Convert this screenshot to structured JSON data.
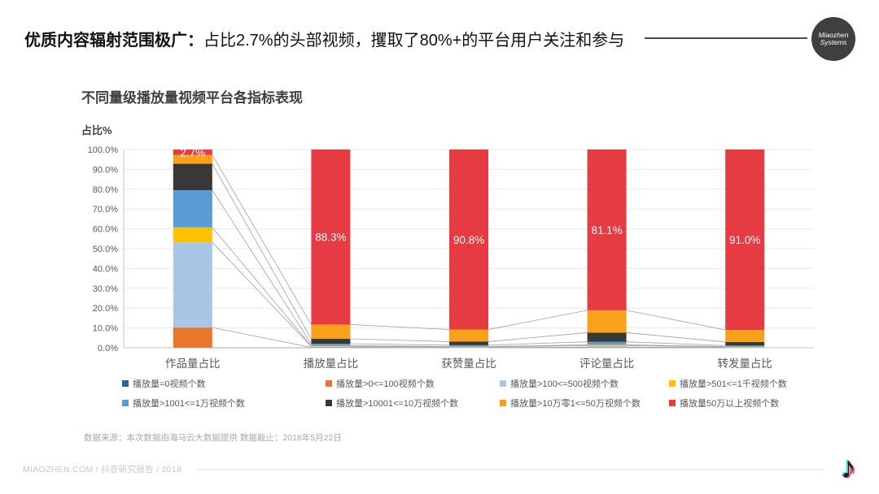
{
  "header": {
    "title_bold": "优质内容辐射范围极广：",
    "title_rest": "占比2.7%的头部视频，攫取了80%+的平台用户关注和参与",
    "logo_line1": "Miaozhen",
    "logo_line2": "Systems"
  },
  "chart": {
    "title": "不同量级播放量视频平台各指标表现",
    "y_axis_label": "占比%"
  },
  "chart_data": {
    "type": "bar",
    "stacked": true,
    "title": "不同量级播放量视频平台各指标表现",
    "ylabel": "占比%",
    "ylim": [
      0,
      100
    ],
    "grid": true,
    "legend_position": "bottom",
    "y_ticks": [
      "100.0%",
      "90.0%",
      "80.0%",
      "70.0%",
      "60.0%",
      "50.0%",
      "40.0%",
      "30.0%",
      "20.0%",
      "10.0%",
      "0.0%"
    ],
    "categories": [
      "作品量占比",
      "播放量占比",
      "获赞量占比",
      "评论量占比",
      "转发量占比"
    ],
    "series": [
      {
        "name": "播放量=0视频个数",
        "color": "#31619F",
        "values": [
          0,
          0,
          0,
          0,
          0
        ]
      },
      {
        "name": "播放量>0<=100视频个数",
        "color": "#E8762D",
        "values": [
          10.2,
          0.2,
          0.1,
          0.3,
          0.1
        ]
      },
      {
        "name": "播放量>100<=500视频个数",
        "color": "#A9C6E6",
        "values": [
          43.0,
          0.5,
          0.3,
          0.8,
          0.3
        ]
      },
      {
        "name": "播放量>501<=1千视频个数",
        "color": "#FFC000",
        "values": [
          7.5,
          0.3,
          0.2,
          0.4,
          0.2
        ]
      },
      {
        "name": "播放量>1001<=1万视频个数",
        "color": "#5B9BD5",
        "values": [
          18.8,
          1.0,
          0.7,
          1.5,
          0.5
        ]
      },
      {
        "name": "播放量>10001<=10万视频个数",
        "color": "#383838",
        "values": [
          13.3,
          2.5,
          1.8,
          4.6,
          1.8
        ]
      },
      {
        "name": "播放量>10万零1<=50万视频个数",
        "color": "#F9A11B",
        "values": [
          4.5,
          7.2,
          6.1,
          11.3,
          6.1
        ]
      },
      {
        "name": "播放量50万以上视频个数",
        "color": "#E63B43",
        "values": [
          2.7,
          88.3,
          90.8,
          81.1,
          91.0
        ]
      }
    ],
    "data_labels": [
      "2.7%",
      "88.3%",
      "90.8%",
      "81.1%",
      "91.0%"
    ],
    "data_label_color": "#ffffff",
    "grid_color": "#eaeaea",
    "axis_color": "#c6c6c6",
    "tick_label_color": "#595959",
    "series_line_color": "#a0a0a0"
  },
  "footnote": "数据来源：本次数据由海马云大数据提供 数据截止：2018年5月22日",
  "footer": {
    "text": "MIAOZHEN.COM / 抖音研究报告 / 2018"
  },
  "icons": {
    "douyin_note": "♪"
  }
}
